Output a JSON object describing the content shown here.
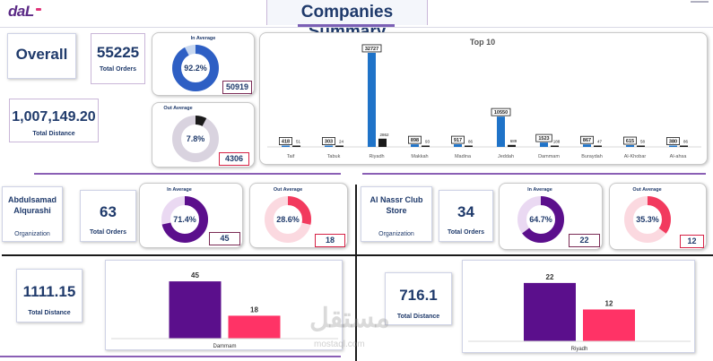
{
  "header": {
    "logo": "daL",
    "title": "Companies Summary",
    "colors": {
      "title": "#1f3a6b",
      "accent_line": "#7b5fb5",
      "logo": "#5b2a86"
    }
  },
  "overall": {
    "label": "Overall",
    "total_orders": {
      "value": "55225",
      "label": "Total Orders"
    },
    "total_distance": {
      "value": "1,007,149.20",
      "label": "Total Distance"
    },
    "in_average": {
      "title": "In Average",
      "percent": "92.2%",
      "fraction": 0.922,
      "count": "50919",
      "color": "#2e5fc4",
      "track": "#c8d8f0"
    },
    "out_average": {
      "title": "Out Average",
      "percent": "7.8%",
      "fraction": 0.078,
      "count": "4306",
      "color": "#1a1a1a",
      "track": "#d9d3df"
    }
  },
  "top10": {
    "chart_data": {
      "type": "bar",
      "title": "Top 10",
      "categories": [
        "Taif",
        "Tabuk",
        "Riyadh",
        "Makkah",
        "Madina",
        "Jeddah",
        "Dammam",
        "Buraydah",
        "Al-Khobar",
        "Al-ahsa"
      ],
      "series": [
        {
          "name": "In Average",
          "color": "#1f73c8",
          "values": [
            418,
            303,
            32727,
            898,
            917,
            10550,
            1523,
            867,
            615,
            380
          ]
        },
        {
          "name": "Out Average",
          "color": "#1a1a1a",
          "values": [
            51,
            24,
            2862,
            93,
            86,
            689,
            188,
            47,
            58,
            86
          ]
        }
      ],
      "ylim": [
        0,
        35000
      ]
    }
  },
  "company1": {
    "name": "Abdulsamad Alqurashi",
    "type_label": "Organization",
    "total_orders": {
      "value": "63",
      "label": "Total Orders"
    },
    "total_distance": {
      "value": "1111.15",
      "label": "Total Distance"
    },
    "in_average": {
      "title": "In Average",
      "percent": "71.4%",
      "fraction": 0.714,
      "count": "45",
      "color": "#5b0f8c",
      "track": "#ead9f2"
    },
    "out_average": {
      "title": "Out Average",
      "percent": "28.6%",
      "fraction": 0.286,
      "count": "18",
      "color": "#f23a5e",
      "track": "#fbd9e0"
    },
    "chart_data": {
      "type": "bar",
      "categories": [
        "Dammam"
      ],
      "series": [
        {
          "name": "In Average",
          "color": "#5b0f8c",
          "values": [
            45
          ]
        },
        {
          "name": "Out Average",
          "color": "#ff3366",
          "values": [
            18
          ]
        }
      ],
      "ylim": [
        0,
        50
      ]
    }
  },
  "company2": {
    "name": "Al Nassr Club Store",
    "type_label": "Organization",
    "total_orders": {
      "value": "34",
      "label": "Total Orders"
    },
    "total_distance": {
      "value": "716.1",
      "label": "Total Distance"
    },
    "in_average": {
      "title": "In Average",
      "percent": "64.7%",
      "fraction": 0.647,
      "count": "22",
      "color": "#5b0f8c",
      "track": "#ead9f2"
    },
    "out_average": {
      "title": "Out Average",
      "percent": "35.3%",
      "fraction": 0.353,
      "count": "12",
      "color": "#f23a5e",
      "track": "#fbd9e0"
    },
    "chart_data": {
      "type": "bar",
      "categories": [
        "Riyadh"
      ],
      "series": [
        {
          "name": "In Average",
          "color": "#5b0f8c",
          "values": [
            22
          ]
        },
        {
          "name": "Out Average",
          "color": "#ff3366",
          "values": [
            12
          ]
        }
      ],
      "ylim": [
        0,
        25
      ]
    }
  },
  "watermark": {
    "arabic": "مستقل",
    "latin": "mostaql.com"
  }
}
